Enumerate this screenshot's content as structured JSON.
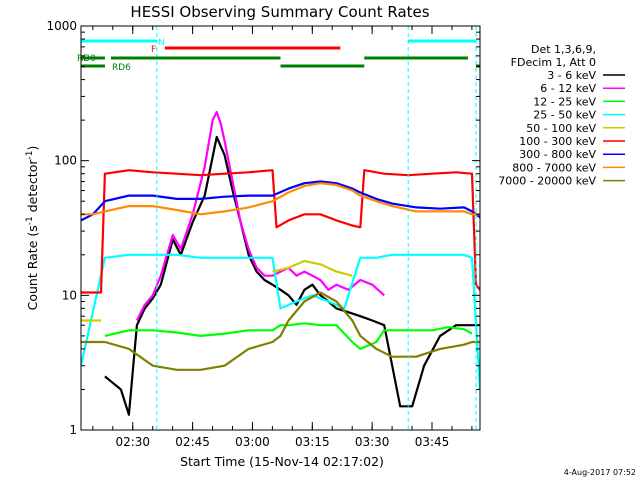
{
  "chart_data": {
    "type": "line",
    "title": "HESSI Observing Summary Count Rates",
    "xlabel": "Start Time (15-Nov-14 02:17:02)",
    "ylabel_main": "Count Rate (s",
    "ylabel_sup1": "-1",
    "ylabel_mid": " detector",
    "ylabel_sup2": "-1",
    "ylabel_end": ")",
    "yscale": "log",
    "ylim": [
      1,
      1000
    ],
    "xlim_minutes": [
      0,
      100
    ],
    "x_ticks": [
      {
        "label": "02:30",
        "minutes": 12.97
      },
      {
        "label": "02:45",
        "minutes": 27.97
      },
      {
        "label": "03:00",
        "minutes": 42.97
      },
      {
        "label": "03:15",
        "minutes": 57.97
      },
      {
        "label": "03:30",
        "minutes": 72.97
      },
      {
        "label": "03:45",
        "minutes": 87.97
      }
    ],
    "y_ticks": [
      {
        "label": "1",
        "value": 1
      },
      {
        "label": "10",
        "value": 10
      },
      {
        "label": "100",
        "value": 100
      },
      {
        "label": "1000",
        "value": 1000
      }
    ],
    "footer_date": "4-Aug-2017 07:52",
    "legend_header": [
      "Det 1,3,6,9,",
      "FDecim 1, Att 0"
    ],
    "series": [
      {
        "name": "3 - 6 keV",
        "color": "#000000",
        "x": [
          0,
          6,
          10,
          12,
          14,
          16,
          18,
          20,
          23,
          25,
          28,
          31,
          34,
          36,
          38,
          40,
          42,
          44,
          46,
          48,
          50,
          52,
          54,
          56,
          58,
          60,
          62,
          64,
          67,
          70,
          73,
          76,
          78,
          80,
          83,
          86,
          90,
          94,
          97,
          100
        ],
        "y": [
          null,
          2.5,
          2.0,
          1.3,
          6.0,
          8.0,
          9.5,
          12,
          26,
          20,
          35,
          55,
          150,
          110,
          60,
          35,
          20,
          15,
          13,
          12,
          11,
          10,
          8.5,
          11,
          12,
          10,
          9,
          8,
          7.5,
          7,
          6.5,
          6,
          3,
          1.5,
          1.5,
          3,
          5,
          6,
          6,
          6
        ]
      },
      {
        "name": "6 - 12 keV",
        "color": "#ff00ff",
        "x": [
          14,
          16,
          18,
          20,
          23,
          25,
          28,
          31,
          33,
          34,
          35,
          36,
          38,
          40,
          42,
          44,
          46,
          48,
          50,
          52,
          54,
          56,
          58,
          60,
          62,
          64,
          67,
          70,
          73,
          76
        ],
        "y": [
          6.5,
          8.5,
          10,
          14,
          28,
          22,
          40,
          90,
          200,
          230,
          190,
          140,
          70,
          35,
          22,
          16,
          14,
          14,
          15,
          16,
          14,
          15,
          14,
          13,
          11,
          12,
          11,
          13,
          12,
          10
        ]
      },
      {
        "name": "12 - 25 keV",
        "color": "#00ff00",
        "x": [
          0,
          6,
          12,
          18,
          24,
          30,
          36,
          42,
          48,
          50,
          52,
          56,
          60,
          64,
          68,
          70,
          74,
          76,
          80,
          84,
          88,
          92,
          96,
          98,
          100
        ],
        "y": [
          null,
          5.0,
          5.5,
          5.5,
          5.3,
          5.0,
          5.2,
          5.5,
          5.5,
          6.0,
          6.0,
          6.2,
          6.0,
          6.0,
          4.5,
          4.0,
          4.5,
          5.5,
          5.5,
          5.5,
          5.5,
          5.8,
          5.6,
          5.2,
          null
        ]
      },
      {
        "name": "25 - 50 keV",
        "color": "#00ffff",
        "x": [
          0,
          6,
          12,
          18,
          24,
          30,
          36,
          42,
          48,
          50,
          54,
          58,
          62,
          66,
          70,
          74,
          78,
          82,
          86,
          90,
          94,
          96,
          98,
          100
        ],
        "y": [
          3.0,
          19,
          20,
          20,
          20,
          19,
          19,
          19,
          19,
          8,
          9,
          10,
          9,
          8,
          19,
          19,
          20,
          20,
          20,
          20,
          20,
          20,
          19,
          2
        ]
      },
      {
        "name": "50 - 100 keV",
        "color": "#cccc00",
        "x": [
          0,
          5,
          6,
          12,
          18,
          24,
          30,
          36,
          42,
          48,
          52,
          56,
          60,
          64,
          68,
          70,
          100
        ],
        "y": [
          6.5,
          6.5,
          null,
          null,
          null,
          null,
          null,
          null,
          null,
          15,
          16,
          18,
          17,
          15,
          14,
          null,
          null
        ]
      },
      {
        "name": "100 - 300 keV",
        "color": "#ff0000",
        "x": [
          0,
          5,
          6,
          12,
          18,
          24,
          30,
          36,
          42,
          48,
          49,
          52,
          56,
          60,
          64,
          68,
          70,
          71,
          76,
          82,
          88,
          94,
          98,
          99,
          100
        ],
        "y": [
          10.5,
          10.5,
          80,
          85,
          82,
          80,
          78,
          80,
          82,
          85,
          32,
          36,
          40,
          40,
          36,
          33,
          32,
          85,
          80,
          78,
          80,
          82,
          80,
          12,
          11
        ]
      },
      {
        "name": "300 - 800 keV",
        "color": "#0000ff",
        "x": [
          0,
          3,
          6,
          12,
          18,
          24,
          30,
          36,
          42,
          48,
          52,
          56,
          60,
          64,
          68,
          70,
          74,
          78,
          84,
          90,
          96,
          98,
          100
        ],
        "y": [
          36,
          40,
          50,
          55,
          55,
          52,
          52,
          54,
          55,
          55,
          62,
          68,
          70,
          68,
          62,
          58,
          52,
          48,
          45,
          44,
          45,
          42,
          38
        ]
      },
      {
        "name": "800 - 7000 keV",
        "color": "#ff8c00",
        "x": [
          0,
          3,
          6,
          12,
          18,
          24,
          30,
          36,
          42,
          48,
          52,
          56,
          60,
          64,
          68,
          70,
          74,
          78,
          84,
          90,
          96,
          98,
          100
        ],
        "y": [
          40,
          40,
          42,
          46,
          46,
          43,
          40,
          42,
          45,
          50,
          58,
          65,
          68,
          66,
          60,
          55,
          50,
          46,
          42,
          42,
          42,
          40,
          40
        ]
      },
      {
        "name": "7000 - 20000 keV",
        "color": "#808000",
        "x": [
          0,
          6,
          12,
          18,
          24,
          30,
          36,
          42,
          48,
          50,
          52,
          56,
          60,
          64,
          68,
          70,
          74,
          78,
          84,
          90,
          96,
          98,
          100
        ],
        "y": [
          4.5,
          4.5,
          4.0,
          3.0,
          2.8,
          2.8,
          3.0,
          4.0,
          4.5,
          5.0,
          6.5,
          9.0,
          10.5,
          9.0,
          6.5,
          5.0,
          4.0,
          3.5,
          3.5,
          4.0,
          4.3,
          4.5,
          4.5
        ]
      }
    ],
    "flag_bars": [
      {
        "label": "N",
        "color": "#00ffff",
        "segments_minutes": [
          [
            0,
            19
          ],
          [
            82,
            99
          ]
        ]
      },
      {
        "label": "F",
        "color": "#ff0000",
        "segments_minutes": [
          [
            21,
            65
          ]
        ]
      },
      {
        "label": "RD0",
        "color": "#008000",
        "segments_minutes": [
          [
            0,
            6
          ],
          [
            7.5,
            50
          ],
          [
            71,
            97
          ]
        ]
      },
      {
        "label": "RD6",
        "color": "#008000",
        "segments_minutes": [
          [
            0,
            6
          ],
          [
            50,
            71
          ],
          [
            99,
            100
          ]
        ]
      }
    ],
    "vlines_minutes": [
      19,
      82,
      99
    ],
    "vline_color": "#00ffff"
  }
}
